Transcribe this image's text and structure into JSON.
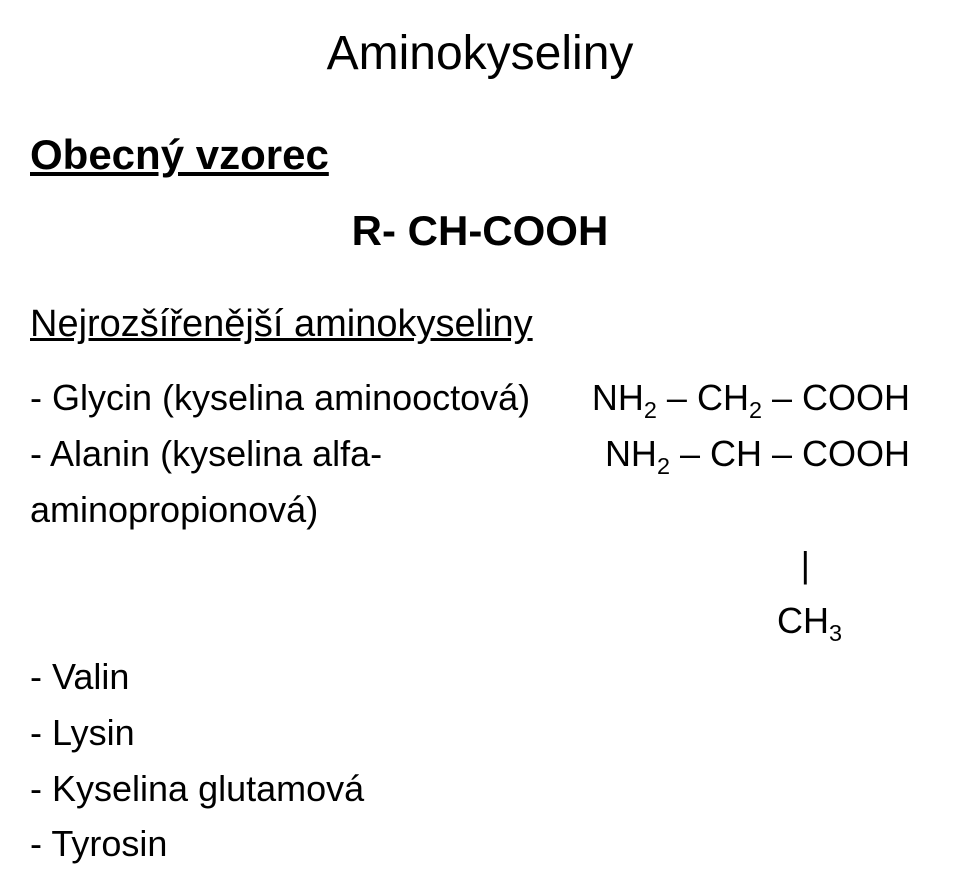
{
  "title": "Aminokyseliny",
  "section_heading": "Obecný vzorec",
  "general_formula": "R- CH-COOH",
  "subheading": "Nejrozšířenější aminokyseliny",
  "items": {
    "glycin": {
      "label": "- Glycin  (kyselina aminooctová)",
      "formula_prefix": "NH",
      "formula_sub1": "2",
      "formula_mid": " – CH",
      "formula_sub2": "2",
      "formula_suffix": " – COOH"
    },
    "alanin": {
      "label": "- Alanin (kyselina alfa-aminopropionová)",
      "formula_prefix": "NH",
      "formula_sub1": "2",
      "formula_mid": " – CH – COOH"
    },
    "pipe": "|",
    "ch3_prefix": "CH",
    "ch3_sub": "3",
    "valin": "- Valin",
    "lysin": "- Lysin",
    "glutamova": "- Kyselina glutamová",
    "tyrosin": "- Tyrosin"
  }
}
